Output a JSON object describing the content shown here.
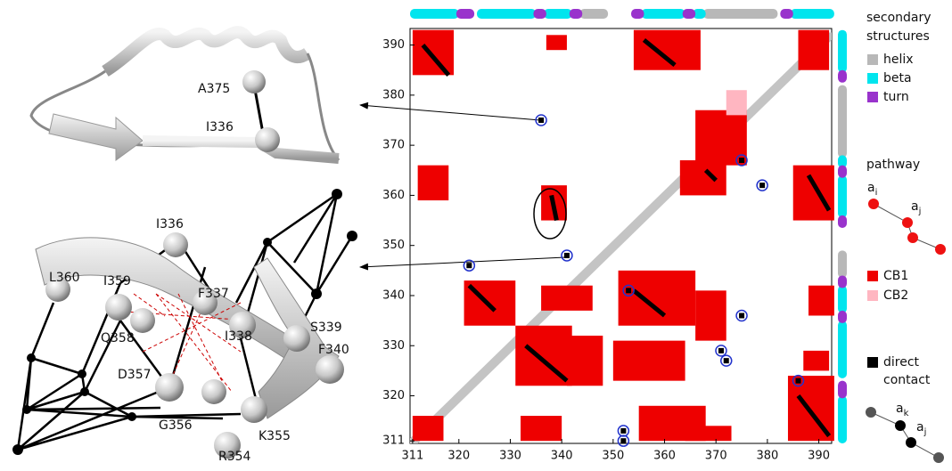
{
  "chart_data": {
    "type": "contact-map",
    "xlim": [
      310.5,
      392.5
    ],
    "ylim": [
      310.5,
      393.3
    ],
    "xticks": [
      311,
      320,
      330,
      340,
      350,
      360,
      370,
      380,
      390
    ],
    "yticks": [
      311,
      320,
      330,
      340,
      350,
      360,
      370,
      380,
      390
    ],
    "secondary_structure": [
      {
        "name": "helix",
        "color": "#b8b8b8",
        "segments": [
          [
            344,
            349
          ],
          [
            368,
            382
          ]
        ]
      },
      {
        "name": "beta",
        "color": "#00e5ee",
        "segments": [
          [
            311,
            320
          ],
          [
            324,
            335
          ],
          [
            337,
            342
          ],
          [
            356,
            364
          ],
          [
            366,
            368
          ],
          [
            385,
            393
          ]
        ]
      },
      {
        "name": "turn",
        "color": "#9933cc",
        "segments": [
          [
            320,
            323
          ],
          [
            335,
            337
          ],
          [
            342,
            344
          ],
          [
            354,
            356
          ],
          [
            364,
            366
          ],
          [
            383,
            385
          ]
        ]
      }
    ],
    "cb1": {
      "name": "CB1",
      "color": "#ee0000",
      "regions": [
        {
          "x": [
            311,
            319
          ],
          "y": [
            384,
            393
          ]
        },
        {
          "x": [
            337,
            341
          ],
          "y": [
            389,
            392
          ]
        },
        {
          "x": [
            354,
            367
          ],
          "y": [
            385,
            393
          ]
        },
        {
          "x": [
            386,
            392
          ],
          "y": [
            385,
            393
          ]
        },
        {
          "x": [
            366,
            376
          ],
          "y": [
            366,
            377
          ]
        },
        {
          "x": [
            385,
            393
          ],
          "y": [
            355,
            366
          ]
        },
        {
          "x": [
            363,
            372
          ],
          "y": [
            360,
            367
          ]
        },
        {
          "x": [
            312,
            318
          ],
          "y": [
            359,
            366
          ]
        },
        {
          "x": [
            336,
            341
          ],
          "y": [
            355,
            362
          ]
        },
        {
          "x": [
            321,
            331
          ],
          "y": [
            334,
            343
          ]
        },
        {
          "x": [
            331,
            342
          ],
          "y": [
            322,
            334
          ]
        },
        {
          "x": [
            341,
            348
          ],
          "y": [
            322,
            332
          ]
        },
        {
          "x": [
            350,
            364
          ],
          "y": [
            323,
            331
          ]
        },
        {
          "x": [
            351,
            366
          ],
          "y": [
            334,
            345
          ]
        },
        {
          "x": [
            384,
            393
          ],
          "y": [
            311,
            324
          ]
        },
        {
          "x": [
            355,
            368
          ],
          "y": [
            311,
            318
          ]
        },
        {
          "x": [
            311,
            317
          ],
          "y": [
            311,
            316
          ]
        },
        {
          "x": [
            332,
            340
          ],
          "y": [
            311,
            316
          ]
        },
        {
          "x": [
            364,
            373
          ],
          "y": [
            311,
            314
          ]
        },
        {
          "x": [
            388,
            393
          ],
          "y": [
            336,
            342
          ]
        },
        {
          "x": [
            387,
            392
          ],
          "y": [
            325,
            329
          ]
        },
        {
          "x": [
            366,
            372
          ],
          "y": [
            331,
            341
          ]
        },
        {
          "x": [
            336,
            346
          ],
          "y": [
            337,
            342
          ]
        }
      ]
    },
    "cb2": {
      "name": "CB2",
      "color": "#ffb6c1",
      "regions": [
        {
          "x": [
            372,
            376
          ],
          "y": [
            376,
            381
          ]
        }
      ]
    },
    "direct_contact": {
      "name": [
        "direct",
        "contact"
      ],
      "color": "#000000",
      "segments": [
        [
          313,
          390,
          318,
          384
        ],
        [
          356,
          391,
          362,
          386
        ],
        [
          388,
          364,
          392,
          357
        ],
        [
          386,
          320,
          392,
          312
        ],
        [
          333,
          330,
          341,
          323
        ],
        [
          354,
          341,
          360,
          336
        ],
        [
          322,
          342,
          327,
          337
        ],
        [
          338,
          360,
          339,
          355
        ],
        [
          368,
          365,
          370,
          363
        ]
      ]
    },
    "pathway_points": [
      [
        336,
        375
      ],
      [
        375,
        367
      ],
      [
        379,
        362
      ],
      [
        322,
        346
      ],
      [
        341,
        348
      ],
      [
        353,
        341
      ],
      [
        375,
        336
      ],
      [
        371,
        329
      ],
      [
        372,
        327
      ],
      [
        386,
        323
      ],
      [
        352,
        313
      ],
      [
        352,
        311
      ]
    ],
    "legend": {
      "title": [
        "secondary",
        "structures"
      ],
      "pathway": "pathway",
      "pathway_labels": [
        {
          "base": "a",
          "sub": "i"
        },
        {
          "base": "a",
          "sub": "j"
        }
      ],
      "contact_labels": [
        {
          "base": "a",
          "sub": "k"
        },
        {
          "base": "a",
          "sub": "j"
        }
      ]
    },
    "structure_labels": [
      "A375",
      "I336",
      "I336",
      "L360",
      "I359",
      "F337",
      "Q358",
      "I338",
      "S339",
      "F340",
      "D357",
      "G356",
      "K355",
      "R354"
    ]
  }
}
